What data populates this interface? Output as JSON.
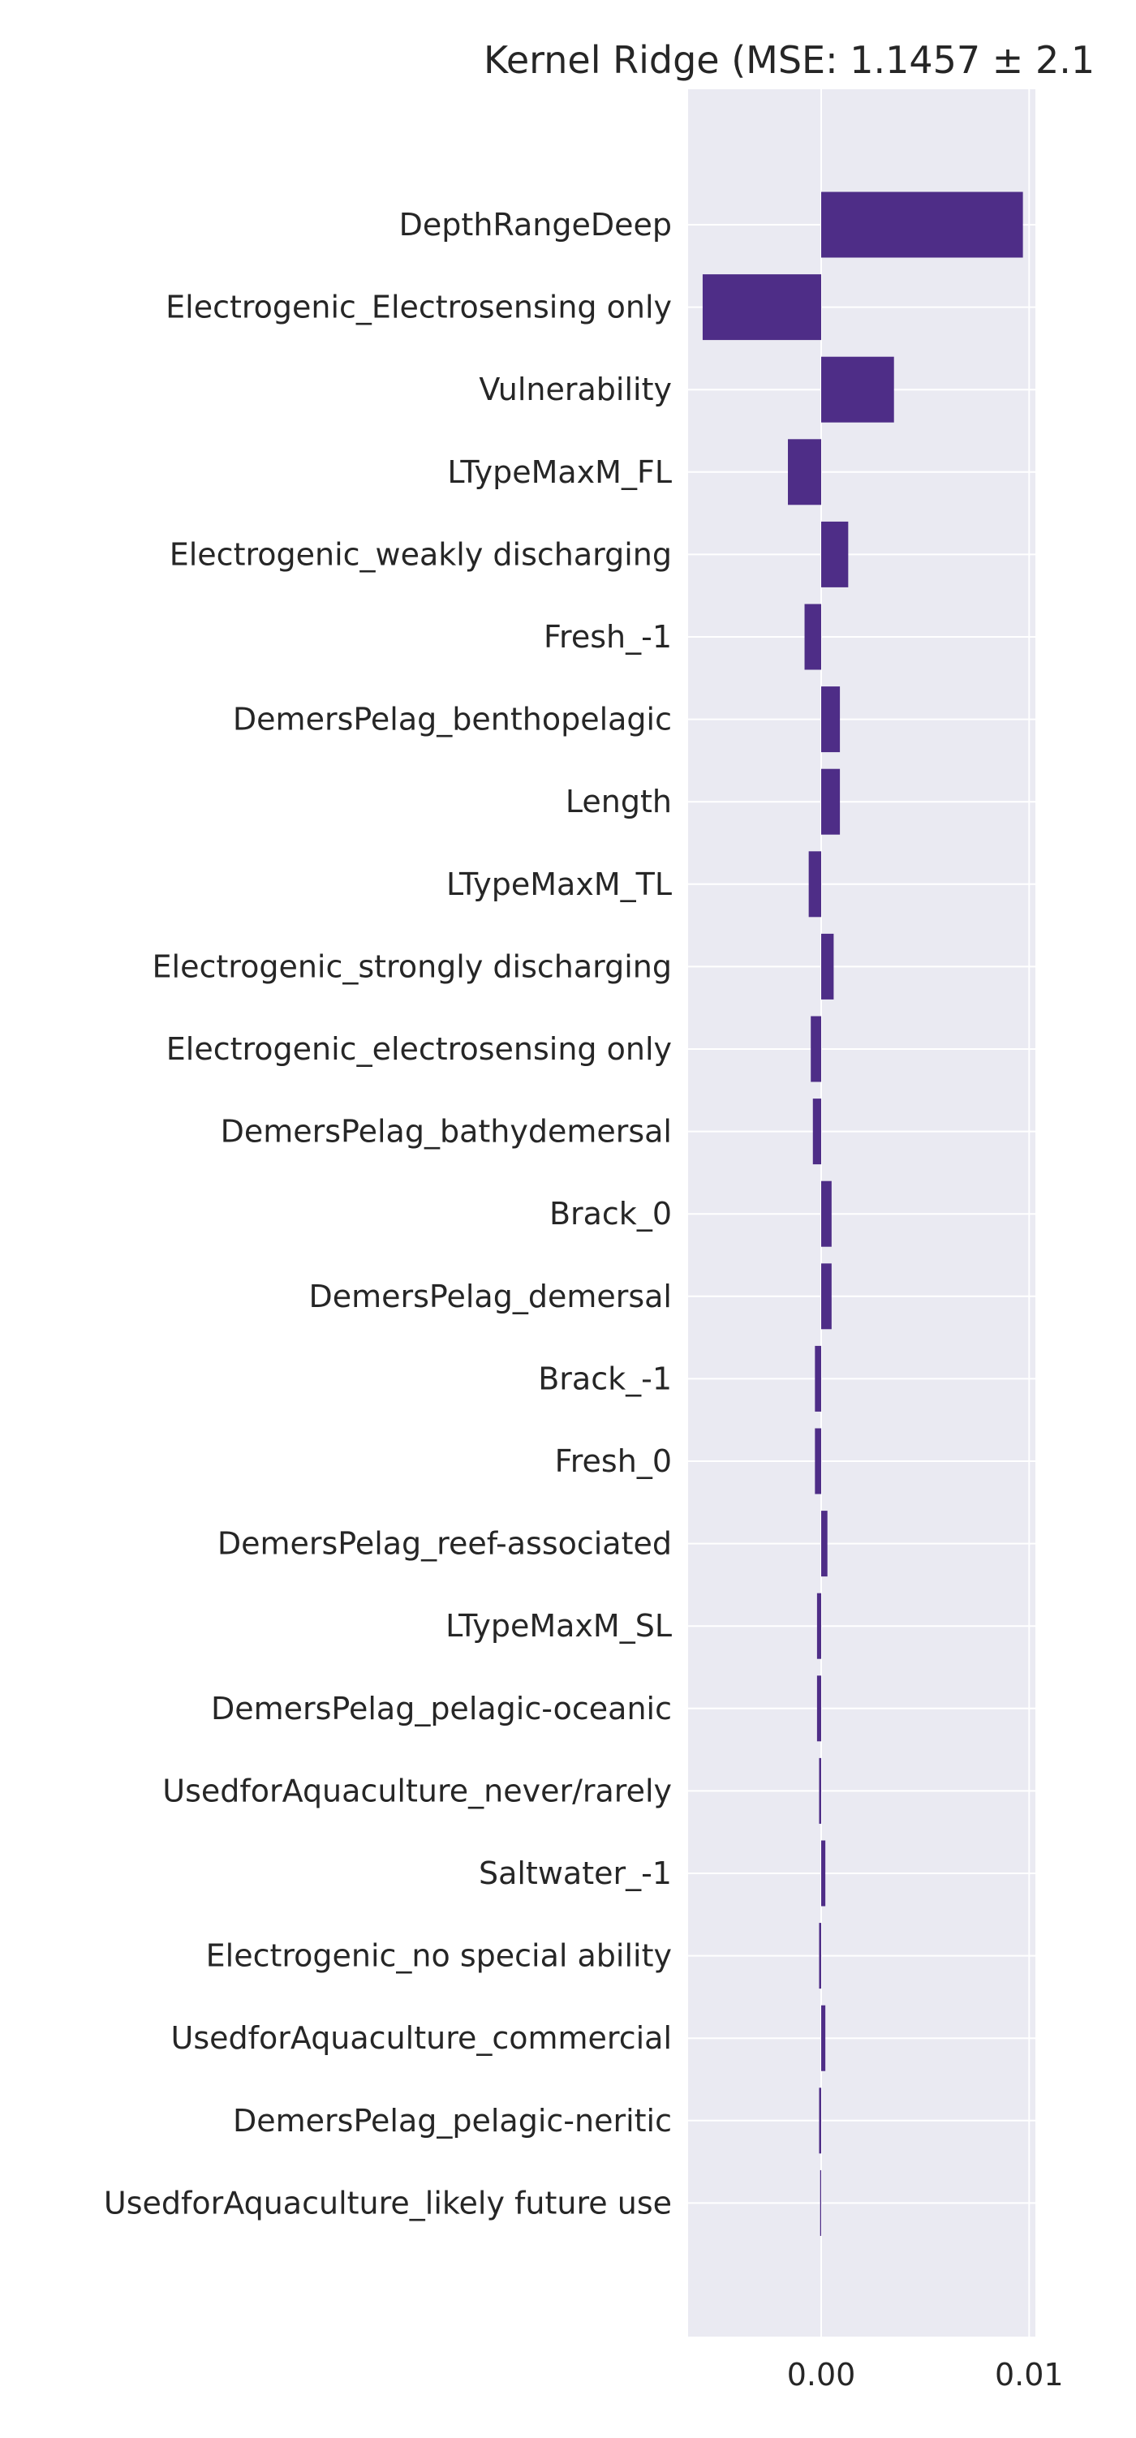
{
  "chart_data": {
    "type": "bar",
    "orientation": "horizontal",
    "title": "Kernel Ridge (MSE: 1.1457 ± 2.1",
    "xlabel": "",
    "ylabel": "",
    "xlim": [
      -0.0064,
      0.0103
    ],
    "xticks": [
      0.0,
      0.01
    ],
    "xtick_labels": [
      "0.00",
      "0.01"
    ],
    "grid": true,
    "legend": "none",
    "colors": {
      "bar": "#4e2d87",
      "plot_background": "#eaeaf2",
      "grid": "#ffffff",
      "text": "#262626"
    },
    "categories": [
      "DepthRangeDeep",
      "Electrogenic_Electrosensing only",
      "Vulnerability",
      "LTypeMaxM_FL",
      "Electrogenic_weakly discharging",
      "Fresh_-1",
      "DemersPelag_benthopelagic",
      "Length",
      "LTypeMaxM_TL",
      "Electrogenic_strongly discharging",
      "Electrogenic_electrosensing only",
      "DemersPelag_bathydemersal",
      "Brack_0",
      "DemersPelag_demersal",
      "Brack_-1",
      "Fresh_0",
      "DemersPelag_reef-associated",
      "LTypeMaxM_SL",
      "DemersPelag_pelagic-oceanic",
      "UsedforAquaculture_never/rarely",
      "Saltwater_-1",
      "Electrogenic_no special ability",
      "UsedforAquaculture_commercial",
      "DemersPelag_pelagic-neritic",
      "UsedforAquaculture_likely future use"
    ],
    "values": [
      0.0097,
      -0.0057,
      0.0035,
      -0.0016,
      0.0013,
      -0.0008,
      0.0009,
      0.0009,
      -0.0006,
      0.0006,
      -0.0005,
      -0.0004,
      0.0005,
      0.0005,
      -0.0003,
      -0.0003,
      0.0003,
      -0.0002,
      -0.0002,
      -0.0001,
      0.0002,
      -0.0001,
      0.0002,
      -0.0001,
      -5e-05
    ]
  }
}
